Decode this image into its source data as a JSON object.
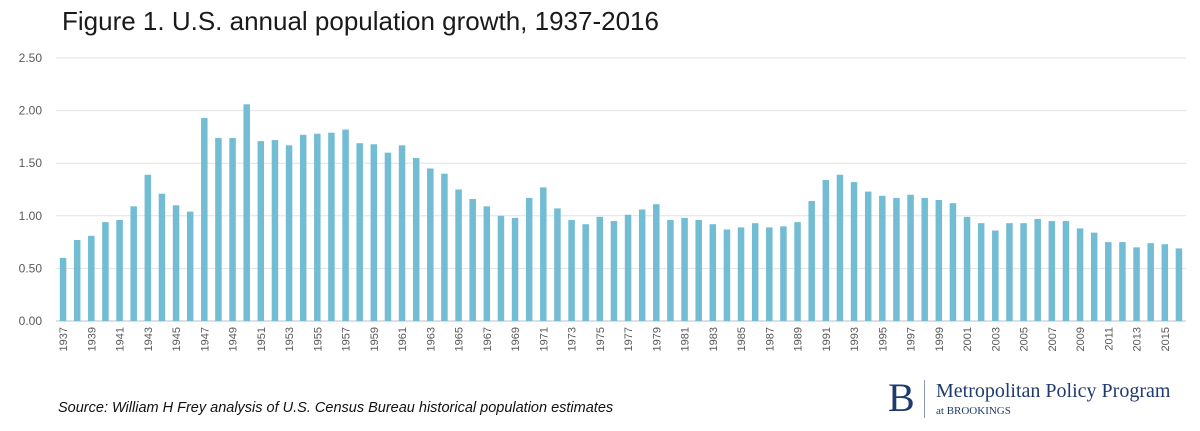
{
  "title": "Figure 1. U.S. annual population growth, 1937-2016",
  "source": "Source: William H Frey analysis of U.S. Census Bureau historical population estimates",
  "brand": {
    "mark": "B",
    "name": "Metropolitan Policy Program",
    "sub": "at BROOKINGS"
  },
  "colors": {
    "bar": "#72bcd4",
    "grid": "#e2e2e2",
    "axis": "#bfbfbf",
    "tick_text": "#595959"
  },
  "chart_data": {
    "type": "bar",
    "title": "Figure 1. U.S. annual population growth, 1937-2016",
    "xlabel": "",
    "ylabel": "",
    "ylim": [
      0,
      2.5
    ],
    "yticks": [
      "0.00",
      "0.50",
      "1.00",
      "1.50",
      "2.00",
      "2.50"
    ],
    "grid": true,
    "categories": [
      "1937",
      "1938",
      "1939",
      "1940",
      "1941",
      "1942",
      "1943",
      "1944",
      "1945",
      "1946",
      "1947",
      "1948",
      "1949",
      "1950",
      "1951",
      "1952",
      "1953",
      "1954",
      "1955",
      "1956",
      "1957",
      "1958",
      "1959",
      "1960",
      "1961",
      "1962",
      "1963",
      "1964",
      "1965",
      "1966",
      "1967",
      "1968",
      "1969",
      "1970",
      "1971",
      "1972",
      "1973",
      "1974",
      "1975",
      "1976",
      "1977",
      "1978",
      "1979",
      "1980",
      "1981",
      "1982",
      "1983",
      "1984",
      "1985",
      "1986",
      "1987",
      "1988",
      "1989",
      "1990",
      "1991",
      "1992",
      "1993",
      "1994",
      "1995",
      "1996",
      "1997",
      "1998",
      "1999",
      "2000",
      "2001",
      "2002",
      "2003",
      "2004",
      "2005",
      "2006",
      "2007",
      "2008",
      "2009",
      "2010",
      "2011",
      "2012",
      "2013",
      "2014",
      "2015",
      "2016"
    ],
    "xtick_labels": [
      "1937",
      "1939",
      "1941",
      "1943",
      "1945",
      "1947",
      "1949",
      "1951",
      "1953",
      "1955",
      "1957",
      "1959",
      "1961",
      "1963",
      "1965",
      "1967",
      "1969",
      "1971",
      "1973",
      "1975",
      "1977",
      "1979",
      "1981",
      "1983",
      "1985",
      "1987",
      "1989",
      "1991",
      "1993",
      "1995",
      "1997",
      "1999",
      "2001",
      "2003",
      "2005",
      "2007",
      "2009",
      "2011",
      "2013",
      "2015"
    ],
    "values": [
      0.6,
      0.77,
      0.81,
      0.94,
      0.96,
      1.09,
      1.39,
      1.21,
      1.1,
      1.04,
      1.93,
      1.74,
      1.74,
      2.06,
      1.71,
      1.72,
      1.67,
      1.77,
      1.78,
      1.79,
      1.82,
      1.69,
      1.68,
      1.6,
      1.67,
      1.55,
      1.45,
      1.4,
      1.25,
      1.16,
      1.09,
      1.0,
      0.98,
      1.17,
      1.27,
      1.07,
      0.96,
      0.92,
      0.99,
      0.95,
      1.01,
      1.06,
      1.11,
      0.96,
      0.98,
      0.96,
      0.92,
      0.87,
      0.89,
      0.93,
      0.89,
      0.9,
      0.94,
      1.14,
      1.34,
      1.39,
      1.32,
      1.23,
      1.19,
      1.17,
      1.2,
      1.17,
      1.15,
      1.12,
      0.99,
      0.93,
      0.86,
      0.93,
      0.93,
      0.97,
      0.95,
      0.95,
      0.88,
      0.84,
      0.75,
      0.75,
      0.7,
      0.74,
      0.73,
      0.69
    ]
  }
}
